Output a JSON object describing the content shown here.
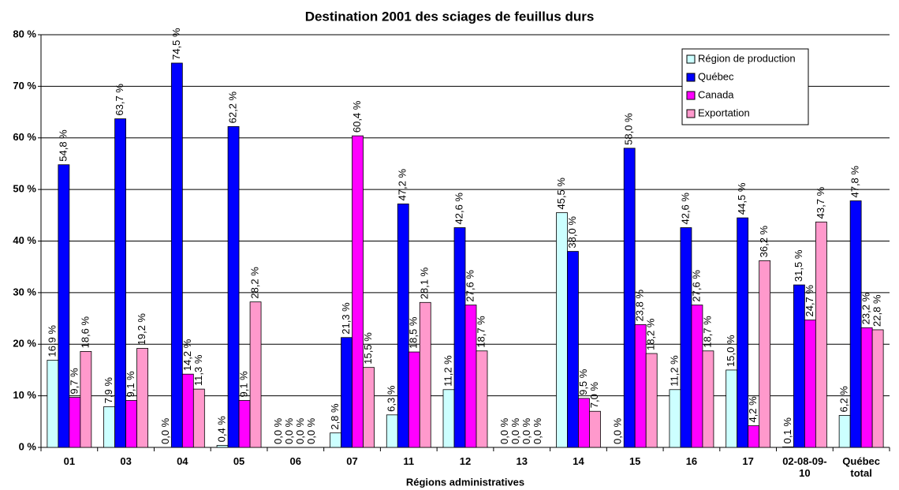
{
  "chart_data": {
    "type": "bar",
    "title": "Destination 2001 des sciages de feuillus durs",
    "x_label": "Régions administratives",
    "categories": [
      "01",
      "03",
      "04",
      "05",
      "06",
      "07",
      "11",
      "12",
      "13",
      "14",
      "15",
      "16",
      "17",
      "02-08-09-10",
      "Québec total"
    ],
    "series": [
      {
        "name": "Région de production",
        "color": "#ccffff",
        "values": [
          16.9,
          7.9,
          0.0,
          0.4,
          0.0,
          2.8,
          6.3,
          11.2,
          0.0,
          45.5,
          0.0,
          11.2,
          15.0,
          0.1,
          6.2
        ],
        "value_labels": [
          "16,9 %",
          "7,9 %",
          "0,0 %",
          "0,4 %",
          "0,0 %",
          "2,8 %",
          "6,3 %",
          "11,2 %",
          "0,0 %",
          "45,5 %",
          "0,0 %",
          "11,2 %",
          "15,0 %",
          "0,1 %",
          "6,2 %"
        ]
      },
      {
        "name": "Québec",
        "color": "#0000ff",
        "values": [
          54.8,
          63.7,
          74.5,
          62.2,
          0.0,
          21.3,
          47.2,
          42.6,
          0.0,
          38.0,
          58.0,
          42.6,
          44.5,
          31.5,
          47.8
        ],
        "value_labels": [
          "54,8 %",
          "63,7 %",
          "74,5 %",
          "62,2 %",
          "0,0 %",
          "21,3 %",
          "47,2 %",
          "42,6 %",
          "0,0 %",
          "38,0 %",
          "58,0 %",
          "42,6 %",
          "44,5 %",
          "31,5 %",
          "47,8 %"
        ]
      },
      {
        "name": "Canada",
        "color": "#ff00ff",
        "values": [
          9.7,
          9.1,
          14.2,
          9.1,
          0.0,
          60.4,
          18.5,
          27.6,
          0.0,
          9.5,
          23.8,
          27.6,
          4.2,
          24.7,
          23.2
        ],
        "value_labels": [
          "9,7 %",
          "9,1 %",
          "14,2 %",
          "9,1 %",
          "0,0 %",
          "60,4 %",
          "18,5 %",
          "27,6 %",
          "0,0 %",
          "9,5 %",
          "23,8 %",
          "27,6 %",
          "4,2 %",
          "24,7 %",
          "23,2 %"
        ]
      },
      {
        "name": "Exportation",
        "color": "#ff99cc",
        "values": [
          18.6,
          19.2,
          11.3,
          28.2,
          0.0,
          15.5,
          28.1,
          18.7,
          0.0,
          7.0,
          18.2,
          18.7,
          36.2,
          43.7,
          22.8
        ],
        "value_labels": [
          "18,6 %",
          "19,2 %",
          "11,3 %",
          "28,2 %",
          "0,0 %",
          "15,5 %",
          "28,1 %",
          "18,7 %",
          "0,0 %",
          "7,0 %",
          "18,2 %",
          "18,7 %",
          "36,2 %",
          "43,7 %",
          "22,8 %"
        ]
      }
    ],
    "ylim": [
      0,
      80
    ],
    "yticks": [
      {
        "value": 0,
        "label": "0 %"
      },
      {
        "value": 10,
        "label": "10 %"
      },
      {
        "value": 20,
        "label": "20 %"
      },
      {
        "value": 30,
        "label": "30 %"
      },
      {
        "value": 40,
        "label": "40 %"
      },
      {
        "value": 50,
        "label": "50 %"
      },
      {
        "value": 60,
        "label": "60 %"
      },
      {
        "value": 70,
        "label": "70 %"
      },
      {
        "value": 80,
        "label": "80 %"
      }
    ],
    "grid": true,
    "legend": "top-right"
  }
}
